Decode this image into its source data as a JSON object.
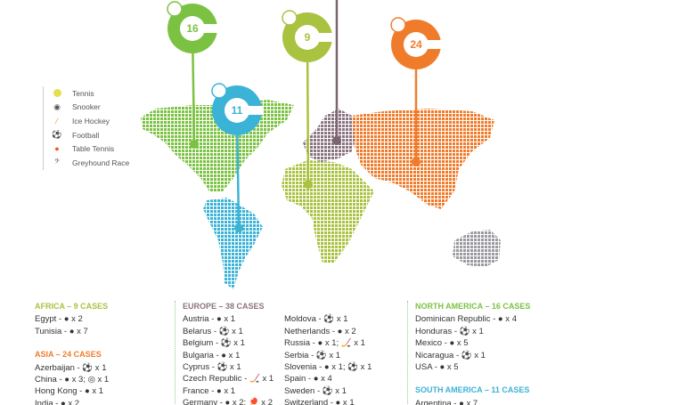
{
  "legend": [
    {
      "icon": "tennis-ball-icon",
      "label": "Tennis"
    },
    {
      "icon": "snooker-ball-icon",
      "label": "Snooker"
    },
    {
      "icon": "ice-hockey-icon",
      "label": "Ice Hockey"
    },
    {
      "icon": "football-icon",
      "label": "Football"
    },
    {
      "icon": "table-tennis-icon",
      "label": "Table Tennis"
    },
    {
      "icon": "greyhound-icon",
      "label": "Greyhound Race"
    }
  ],
  "pins": {
    "north_america": "16",
    "south_america": "11",
    "africa": "9",
    "asia": "24"
  },
  "colors": {
    "north_america": "#7cc242",
    "south_america": "#3bb3d6",
    "africa": "#a9c23f",
    "europe": "#8a7480",
    "asia": "#f07c2b",
    "oceania": "#9a9aa0"
  },
  "regions": {
    "africa": {
      "title": "AFRICA – 9 CASES",
      "items": [
        "Egypt - ● x 2",
        "Tunisia - ● x 7"
      ]
    },
    "asia": {
      "title": "ASIA – 24 CASES",
      "items": [
        "Azerbaijan - ⚽ x 1",
        "China - ● x 3; ◎ x 1",
        "Hong Kong - ●  x 1",
        "India - ● x 2"
      ]
    },
    "europe": {
      "title": "EUROPE – 38 CASES",
      "items": [
        "Austria - ● x 1",
        "Belarus - ⚽ x 1",
        "Belgium - ⚽ x 1",
        "Bulgaria - ● x 1",
        "Cyprus - ⚽ x 1",
        "Czech Republic - 🏒 x 1",
        "France - ● x 1",
        "Germany - ● x 2; 🏓 x 2"
      ],
      "items2": [
        "Moldova - ⚽ x 1",
        "Netherlands - ● x 2",
        "Russia - ● x 1; 🏒 x 1",
        "Serbia - ⚽ x 1",
        "Slovenia - ● x 1; ⚽ x 1",
        "Spain - ● x 4",
        "Sweden - ⚽ x 1",
        "Switzerland - ● x 1"
      ]
    },
    "north_america": {
      "title": "NORTH AMERICA – 16 CASES",
      "items": [
        "Dominican Republic - ● x 4",
        "Honduras - ⚽ x 1",
        "Mexico - ● x 5",
        "Nicaragua - ⚽ x 1",
        "USA - ● x 5"
      ]
    },
    "south_america": {
      "title": "SOUTH AMERICA – 11 CASES",
      "items": [
        "Argentina - ● x 7"
      ]
    }
  }
}
